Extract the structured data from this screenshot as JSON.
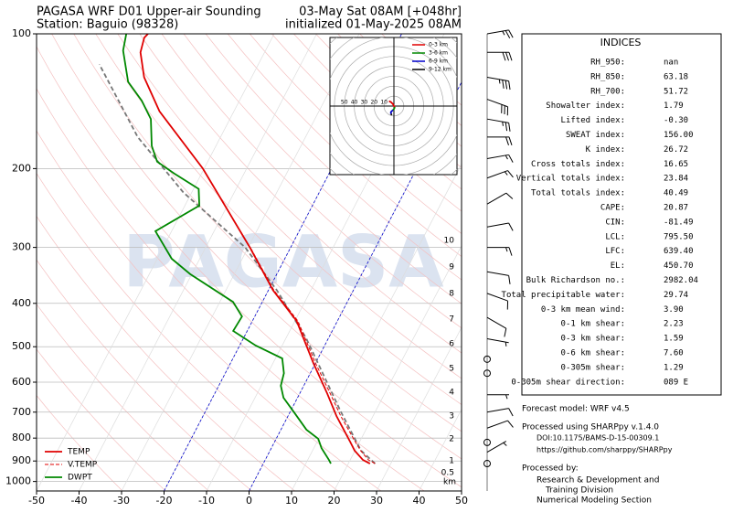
{
  "chart_data": {
    "type": "skewt",
    "title": "PAGASA WRF D01 Upper-air Sounding",
    "subtitle": "Station: Baguio (98328)",
    "valid_time": "03-May Sat 08AM [+048hr]",
    "init_time": "initialized 01-May-2025 08AM",
    "watermark": "PAGASA",
    "xlim": [
      -50,
      50
    ],
    "xticks": [
      -50,
      -40,
      -30,
      -20,
      -10,
      0,
      10,
      20,
      30,
      40,
      50
    ],
    "ylim": [
      100,
      1050
    ],
    "yscale": "log",
    "yticks": [
      100,
      200,
      300,
      400,
      500,
      600,
      700,
      800,
      900,
      1000
    ],
    "grid": true,
    "highlight_isotherms": [
      -20,
      0
    ],
    "highlight_color": "#0000cc",
    "legend": "lower left",
    "series": [
      {
        "name": "TEMP",
        "color": "#e00000",
        "style": "solid",
        "pressure": [
          912,
          895,
          853,
          814,
          714,
          635,
          544,
          438,
          374,
          300,
          200,
          149,
          125,
          110,
          102,
          100
        ],
        "values": [
          25.1,
          23.0,
          19.9,
          17.7,
          11.4,
          6.4,
          -0.5,
          -9.6,
          -18.9,
          -29.6,
          -50.3,
          -67.5,
          -75.3,
          -79.2,
          -80.1,
          -79.7
        ]
      },
      {
        "name": "V.TEMP",
        "color": "#e00000",
        "style": "dashed",
        "pressure": [
          912,
          895,
          853,
          814,
          714,
          635,
          544,
          438,
          374,
          300
        ],
        "values": [
          26.3,
          24.3,
          21.3,
          18.9,
          12.4,
          7.1,
          0.0,
          -9.3,
          -18.7,
          -29.5
        ]
      },
      {
        "name": "DWPT",
        "color": "#008800",
        "style": "solid",
        "pressure": [
          912,
          895,
          842,
          803,
          766,
          701,
          650,
          611,
          573,
          531,
          497,
          461,
          428,
          397,
          344,
          318,
          276,
          242,
          222,
          205,
          193,
          178,
          155,
          141,
          128,
          109,
          100
        ],
        "values": [
          15.9,
          15.0,
          11.8,
          9.9,
          6.0,
          1.0,
          -3.3,
          -5.4,
          -6.2,
          -8.4,
          -16.2,
          -23.3,
          -23.0,
          -26.9,
          -40.4,
          -46.6,
          -53.8,
          -46.6,
          -48.8,
          -56.5,
          -61.9,
          -65.1,
          -68.6,
          -73.0,
          -78.5,
          -83.5,
          -84.8
        ]
      }
    ],
    "parcel": {
      "color": "#777777",
      "pressure": [
        912,
        853,
        700,
        479,
        374,
        300,
        226,
        170,
        117
      ],
      "values": [
        26.3,
        21.4,
        12.0,
        -5.2,
        -18.0,
        -30.7,
        -52.0,
        -69.5,
        -87.4
      ]
    },
    "heights_km": [
      0.5,
      1,
      2,
      3,
      4,
      5,
      6,
      7,
      8,
      9,
      10
    ],
    "height_pressure": [
      956,
      899.2,
      803.1,
      714.0,
      631.8,
      559.2,
      492.5,
      433.8,
      380.2,
      331.7,
      289.5
    ],
    "height_unit": "km",
    "wind": {
      "pressure": [
        100,
        110,
        125,
        140,
        155,
        170,
        190,
        210,
        240,
        270,
        300,
        340,
        380,
        430,
        480,
        533,
        573,
        640,
        700,
        760,
        818,
        860,
        912
      ],
      "direction": [
        80,
        90,
        100,
        110,
        100,
        90,
        80,
        70,
        60,
        80,
        90,
        100,
        110,
        120,
        100,
        0,
        0,
        90,
        80,
        70,
        0,
        60,
        0
      ],
      "speed": [
        25,
        30,
        35,
        30,
        25,
        20,
        15,
        15,
        10,
        10,
        15,
        10,
        10,
        10,
        5,
        0,
        0,
        5,
        10,
        10,
        0,
        5,
        0
      ]
    },
    "hodograph": {
      "rings": [
        10,
        20,
        30,
        40,
        50
      ],
      "lim": [
        -64,
        64
      ],
      "series": [
        {
          "name": "0-3 km",
          "color": "#e00000",
          "u": [
            -5,
            -3,
            -1,
            0,
            1
          ],
          "v": [
            5,
            4,
            2,
            0,
            -1
          ]
        },
        {
          "name": "3-6 km",
          "color": "#008800",
          "u": [
            1,
            0,
            -1
          ],
          "v": [
            -1,
            -3,
            -4
          ]
        },
        {
          "name": "6-9 km",
          "color": "#0000cc",
          "u": [
            -1,
            -3,
            -3
          ],
          "v": [
            -4,
            -6,
            -8
          ]
        },
        {
          "name": "9-12 km",
          "color": "#000000",
          "u": [
            -3,
            -2
          ],
          "v": [
            -8,
            -9
          ]
        }
      ]
    }
  },
  "indices": {
    "title": "INDICES",
    "rows": [
      [
        "RH_950:",
        "nan"
      ],
      [
        "RH_850:",
        "63.18"
      ],
      [
        "RH_700:",
        "51.72"
      ],
      [
        "Showalter index:",
        "1.79"
      ],
      [
        "Lifted index:",
        "-0.30"
      ],
      [
        "SWEAT index:",
        "156.00"
      ],
      [
        "K index:",
        "26.72"
      ],
      [
        "Cross totals index:",
        "16.65"
      ],
      [
        "Vertical totals index:",
        "23.84"
      ],
      [
        "Total totals index:",
        "40.49"
      ],
      [
        "CAPE:",
        "20.87"
      ],
      [
        "CIN:",
        "-81.49"
      ],
      [
        "LCL:",
        "795.50"
      ],
      [
        "LFC:",
        "639.40"
      ],
      [
        "EL:",
        "450.70"
      ],
      [
        "Bulk Richardson no.:",
        "2982.04"
      ],
      [
        "Total precipitable water:",
        "29.74"
      ],
      [
        "0-3 km mean wind:",
        "3.90"
      ],
      [
        "0-1 km shear:",
        "2.23"
      ],
      [
        "0-3 km shear:",
        "1.59"
      ],
      [
        "0-6 km shear:",
        "7.60"
      ],
      [
        "0-305m shear:",
        "1.29"
      ],
      [
        "0-305m shear direction:",
        "089 E"
      ]
    ]
  },
  "footer": {
    "model": "Forecast model: WRF v4.5",
    "processed": "Processed using SHARPpy v.1.4.0",
    "doi": "DOI:10.1175/BAMS-D-15-00309.1",
    "url": "https://github.com/sharppy/SHARPpy",
    "by": "Processed by:",
    "org": [
      "Research & Development and",
      "Training Division",
      "Numerical Modeling Section"
    ]
  }
}
